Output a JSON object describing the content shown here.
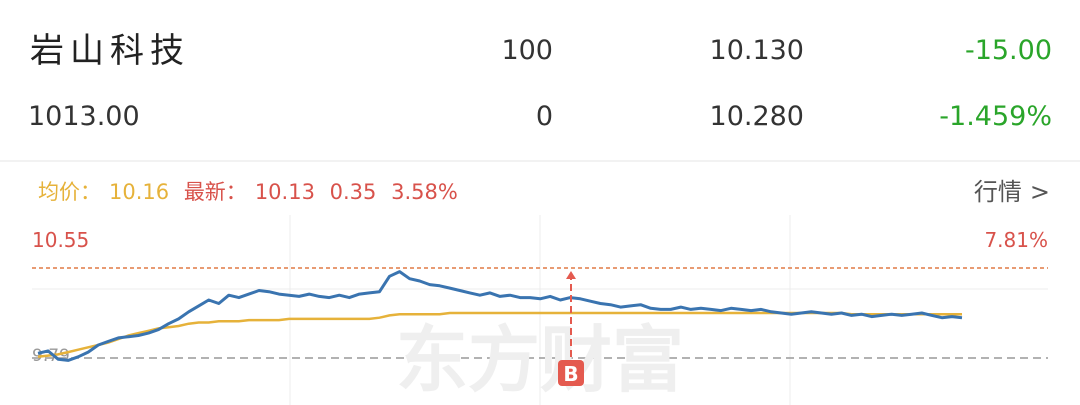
{
  "stock": {
    "name": "岩山科技",
    "volume": "100",
    "price_a": "10.130",
    "change": "-15.00",
    "amount": "1013.00",
    "volume2": "0",
    "price_b": "10.280",
    "change_pct": "-1.459%"
  },
  "info": {
    "avg_label": "均价：",
    "avg_value": "10.16",
    "last_label": "最新：",
    "last_value": "10.13",
    "change_value": "0.35",
    "change_pct": "3.58%",
    "more": "行情",
    "more_icon": "chevron-right-icon"
  },
  "chart": {
    "high_label": "10.55",
    "high_pct": "7.81%",
    "low_label": "9.79",
    "marker": "B",
    "watermark": "东方财富"
  },
  "colors": {
    "up": "#d8524b",
    "down": "#2aa52a",
    "avg": "#e6b23a",
    "price": "#3a74b0"
  },
  "chart_data": {
    "type": "line",
    "y_labels": {
      "max": 10.55,
      "max_pct": "7.81%",
      "ref": 9.79
    },
    "series": [
      {
        "values": [
          9.83,
          9.85,
          9.78,
          9.77,
          9.8,
          9.84,
          9.9,
          9.93,
          9.96,
          9.97,
          9.98,
          10.0,
          10.03,
          10.08,
          10.12,
          10.18,
          10.23,
          10.28,
          10.25,
          10.32,
          10.3,
          10.33,
          10.36,
          10.35,
          10.33,
          10.32,
          10.31,
          10.33,
          10.31,
          10.3,
          10.32,
          10.3,
          10.33,
          10.34,
          10.35,
          10.48,
          10.52,
          10.46,
          10.44,
          10.41,
          10.4,
          10.38,
          10.36,
          10.34,
          10.32,
          10.34,
          10.31,
          10.32,
          10.3,
          10.3,
          10.29,
          10.31,
          10.28,
          10.3,
          10.29,
          10.27,
          10.25,
          10.24,
          10.22,
          10.23,
          10.24,
          10.21,
          10.2,
          10.2,
          10.22,
          10.2,
          10.21,
          10.2,
          10.19,
          10.21,
          10.2,
          10.19,
          10.2,
          10.18,
          10.17,
          10.16,
          10.17,
          10.18,
          10.17,
          10.16,
          10.17,
          10.15,
          10.16,
          10.14,
          10.15,
          10.16,
          10.15,
          10.16,
          10.17,
          10.15,
          10.13,
          10.14,
          10.13
        ]
      },
      {
        "values": [
          9.8,
          9.81,
          9.82,
          9.84,
          9.86,
          9.88,
          9.9,
          9.92,
          9.95,
          9.98,
          10.0,
          10.02,
          10.04,
          10.05,
          10.06,
          10.08,
          10.09,
          10.09,
          10.1,
          10.1,
          10.1,
          10.11,
          10.11,
          10.11,
          10.11,
          10.12,
          10.12,
          10.12,
          10.12,
          10.12,
          10.12,
          10.12,
          10.12,
          10.12,
          10.13,
          10.15,
          10.16,
          10.16,
          10.16,
          10.16,
          10.16,
          10.17,
          10.17,
          10.17,
          10.17,
          10.17,
          10.17,
          10.17,
          10.17,
          10.17,
          10.17,
          10.17,
          10.17,
          10.17,
          10.17,
          10.17,
          10.17,
          10.17,
          10.17,
          10.17,
          10.17,
          10.17,
          10.17,
          10.17,
          10.17,
          10.17,
          10.17,
          10.17,
          10.17,
          10.17,
          10.17,
          10.17,
          10.17,
          10.17,
          10.17,
          10.17,
          10.17,
          10.17,
          10.17,
          10.17,
          10.17,
          10.16,
          10.16,
          10.16,
          10.16,
          10.16,
          10.16,
          10.16,
          10.16,
          10.16,
          10.16,
          10.16,
          10.16
        ]
      }
    ],
    "marker_label": "B"
  }
}
